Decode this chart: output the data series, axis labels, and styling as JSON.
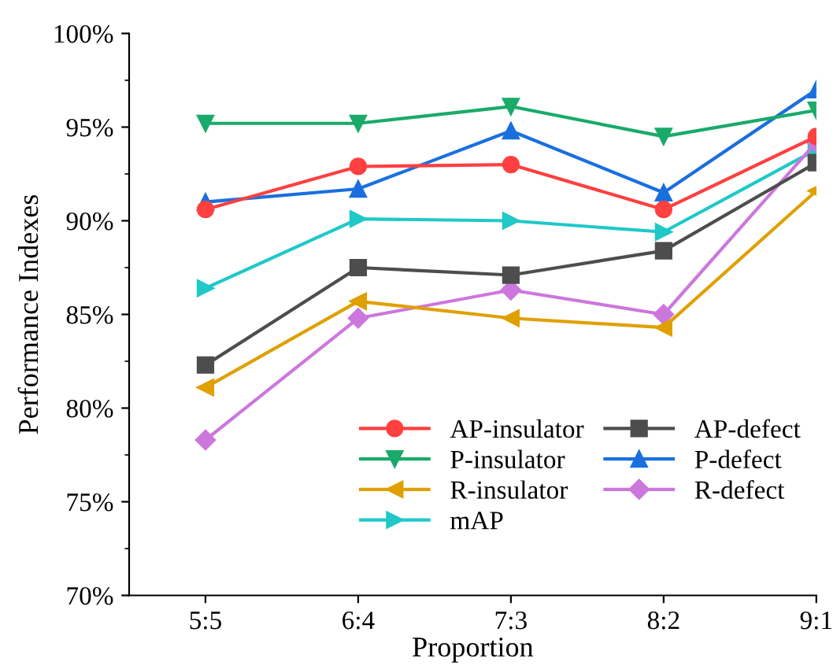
{
  "chart_data": {
    "type": "line",
    "xlabel": "Proportion",
    "ylabel": "Performance Indexes",
    "categories": [
      "5:5",
      "6:4",
      "7:3",
      "8:2",
      "9:1"
    ],
    "ylim": [
      70,
      100
    ],
    "yticks": [
      {
        "value": 70,
        "label": "70%"
      },
      {
        "value": 75,
        "label": "75%"
      },
      {
        "value": 80,
        "label": "80%"
      },
      {
        "value": 85,
        "label": "85%"
      },
      {
        "value": 90,
        "label": "90%"
      },
      {
        "value": 95,
        "label": "95%"
      },
      {
        "value": 100,
        "label": "100%"
      }
    ],
    "grid": false,
    "legend": "bottom right",
    "line_style": "solid",
    "series": [
      {
        "name": "AP-insulator",
        "color": "#ff4040",
        "marker": "circle",
        "values": [
          90.6,
          92.9,
          93.0,
          90.6,
          94.5
        ]
      },
      {
        "name": "AP-defect",
        "color": "#4d4d4d",
        "marker": "square",
        "values": [
          82.3,
          87.5,
          87.1,
          88.4,
          93.1
        ]
      },
      {
        "name": "P-insulator",
        "color": "#1aaa6a",
        "marker": "triangle_down",
        "values": [
          95.2,
          95.2,
          96.1,
          94.5,
          95.9
        ]
      },
      {
        "name": "P-defect",
        "color": "#1a6fdf",
        "marker": "triangle",
        "values": [
          91.0,
          91.7,
          94.8,
          91.5,
          97.0
        ]
      },
      {
        "name": "R-insulator",
        "color": "#e0a000",
        "marker": "triangle_left",
        "values": [
          81.1,
          85.7,
          84.8,
          84.3,
          91.6
        ]
      },
      {
        "name": "R-defect",
        "color": "#cc77dd",
        "marker": "diamond",
        "values": [
          78.3,
          84.8,
          86.3,
          85.0,
          94.2
        ]
      },
      {
        "name": "mAP",
        "color": "#20c8c8",
        "marker": "triangle_right",
        "values": [
          86.4,
          90.1,
          90.0,
          89.4,
          93.8
        ]
      }
    ]
  }
}
